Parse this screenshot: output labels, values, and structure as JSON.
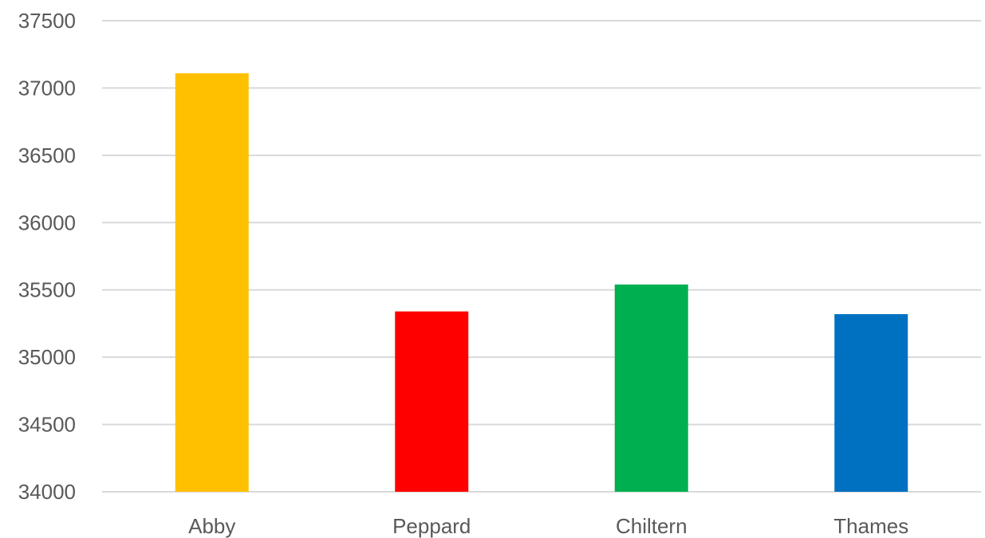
{
  "chart_data": {
    "type": "bar",
    "title": "",
    "xlabel": "",
    "ylabel": "",
    "categories": [
      "Abby",
      "Peppard",
      "Chiltern",
      "Thames"
    ],
    "values": [
      37110,
      35340,
      35540,
      35320
    ],
    "colors": [
      "#FFC000",
      "#FF0000",
      "#00B050",
      "#0070C0"
    ],
    "ylim": [
      34000,
      37500
    ],
    "yticks": [
      34000,
      34500,
      35000,
      35500,
      36000,
      36500,
      37000,
      37500
    ],
    "grid": true,
    "legend": "none"
  }
}
